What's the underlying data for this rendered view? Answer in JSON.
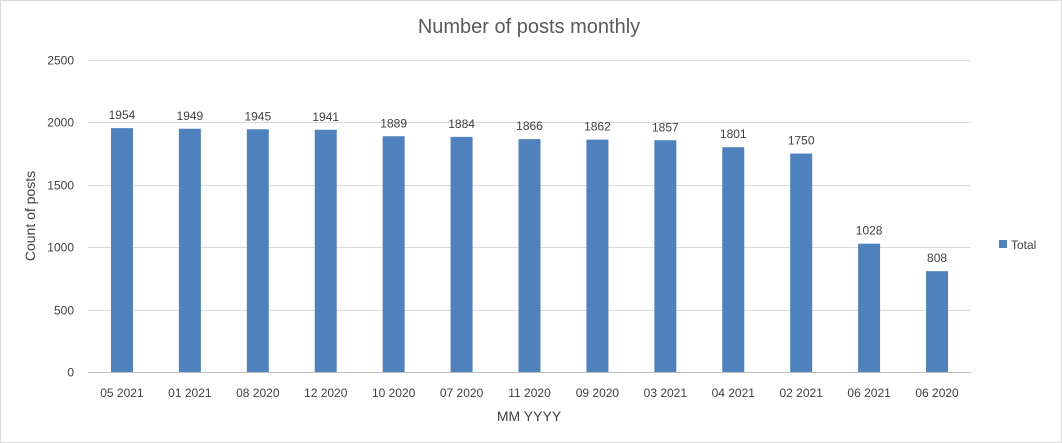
{
  "chart_data": {
    "type": "bar",
    "title": "Number of posts monthly",
    "xlabel": "MM YYYY",
    "ylabel": "Count of posts",
    "categories": [
      "05 2021",
      "01 2021",
      "08 2020",
      "12 2020",
      "10 2020",
      "07 2020",
      "11 2020",
      "09 2020",
      "03 2021",
      "04 2021",
      "02 2021",
      "06 2021",
      "06 2020"
    ],
    "series": [
      {
        "name": "Total",
        "color": "#4f81bd",
        "values": [
          1954,
          1949,
          1945,
          1941,
          1889,
          1884,
          1866,
          1862,
          1857,
          1801,
          1750,
          1028,
          808
        ]
      }
    ],
    "ylim": [
      0,
      2500
    ],
    "yticks": [
      0,
      500,
      1000,
      1500,
      2000,
      2500
    ],
    "grid": true,
    "legend_position": "right",
    "data_labels": true
  }
}
